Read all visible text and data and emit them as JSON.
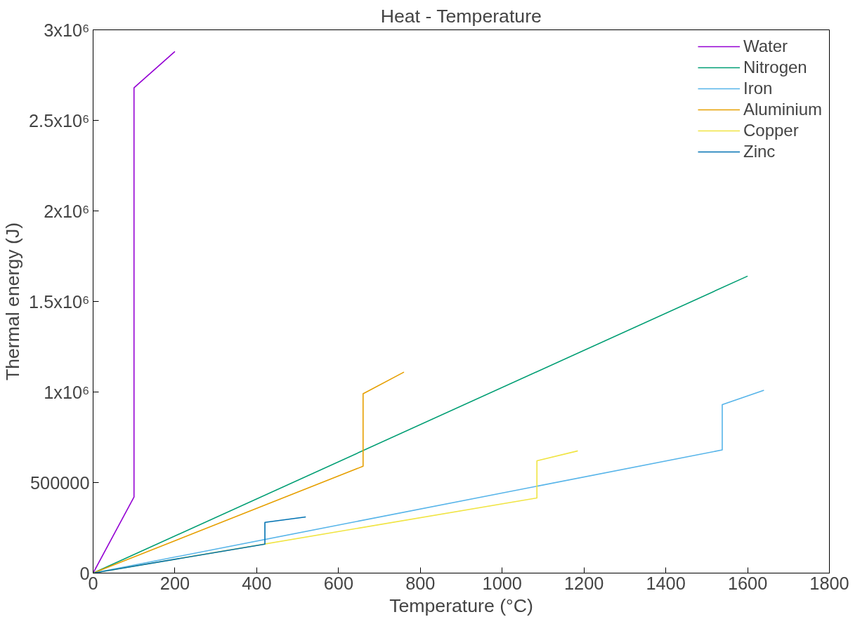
{
  "chart_data": {
    "type": "line",
    "title": "Heat - Temperature",
    "xlabel": "Temperature (°C)",
    "ylabel": "Thermal energy (J)",
    "series": [
      {
        "name": "Water",
        "color": "#9400d3",
        "x": [
          0,
          100,
          100,
          110,
          200
        ],
        "values": [
          0,
          420000,
          2680000,
          2700000,
          2880000
        ]
      },
      {
        "name": "Nitrogen",
        "color": "#009e73",
        "x": [
          0,
          1600
        ],
        "values": [
          0,
          1640000
        ]
      },
      {
        "name": "Iron",
        "color": "#56b4e9",
        "x": [
          0,
          1538,
          1538,
          1640
        ],
        "values": [
          0,
          680000,
          930000,
          1010000
        ]
      },
      {
        "name": "Aluminium",
        "color": "#e69f00",
        "x": [
          0,
          660,
          660,
          760
        ],
        "values": [
          0,
          590000,
          990000,
          1110000
        ]
      },
      {
        "name": "Copper",
        "color": "#f0e442",
        "x": [
          0,
          1085,
          1085,
          1185
        ],
        "values": [
          0,
          415000,
          620000,
          675000
        ]
      },
      {
        "name": "Zinc",
        "color": "#0072b2",
        "x": [
          0,
          420,
          420,
          520
        ],
        "values": [
          0,
          160000,
          280000,
          310000
        ]
      }
    ],
    "xlim": [
      0,
      1800
    ],
    "xticks": [
      0,
      200,
      400,
      600,
      800,
      1000,
      1200,
      1400,
      1600,
      1800
    ],
    "ylim": [
      0,
      3000000
    ],
    "yticks": [
      0,
      500000,
      {
        "value": 1000000,
        "label": "1x10⁶"
      },
      {
        "value": 1500000,
        "label": "1.5x10⁶"
      },
      {
        "value": 2000000,
        "label": "2x10⁶"
      },
      {
        "value": 2500000,
        "label": "2.5x10⁶"
      },
      {
        "value": 3000000,
        "label": "3x10⁶"
      }
    ],
    "grid": false,
    "legend": "top right",
    "line_style": "solid",
    "marker": "none"
  }
}
